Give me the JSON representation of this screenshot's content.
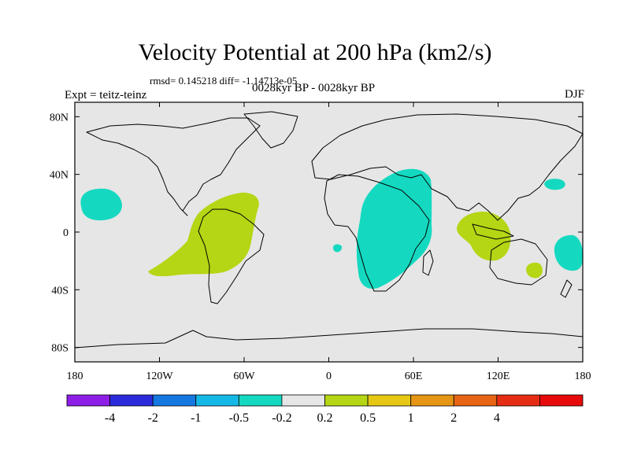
{
  "title": "Velocity Potential at 200 hPa (km2/s)",
  "stats": "rmsd= 0.145218 diff= -1.14713e-05",
  "experiment": "Expt = teitz-teinz",
  "subtitle": "0028kyr BP - 0028kyr BP",
  "season": "DJF",
  "map": {
    "lon_range": [
      -180,
      180
    ],
    "lat_range": [
      -90,
      90
    ],
    "lat_ticks": [
      "80N",
      "40N",
      "0",
      "40S",
      "80S"
    ],
    "lon_ticks": [
      "180",
      "120W",
      "60W",
      "0",
      "60E",
      "120E",
      "180"
    ],
    "background_color": "#e6e6e6"
  },
  "colorbar": {
    "colors": [
      "#8c1ee6",
      "#2b2bdb",
      "#1478e0",
      "#14b8e6",
      "#14d9c0",
      "#e6e6e6",
      "#b4d614",
      "#e6c814",
      "#e69614",
      "#e66414",
      "#e62d14",
      "#e60a0a"
    ],
    "labels": [
      "-4",
      "-2",
      "-1",
      "-0.5",
      "-0.2",
      "0.2",
      "0.5",
      "1",
      "2",
      "4"
    ]
  },
  "anomaly_regions": [
    {
      "name": "north-pacific-negative",
      "value": "-0.2"
    },
    {
      "name": "south-america-positive",
      "value": "0.2"
    },
    {
      "name": "africa-negative",
      "value": "-0.2"
    },
    {
      "name": "south-atlantic-negative",
      "value": "-0.2"
    },
    {
      "name": "maritime-continent-positive",
      "value": "0.2"
    },
    {
      "name": "australia-positive",
      "value": "0.2"
    },
    {
      "name": "southwest-pacific-negative",
      "value": "-0.2"
    },
    {
      "name": "northwest-pacific-negative",
      "value": "-0.2"
    }
  ]
}
